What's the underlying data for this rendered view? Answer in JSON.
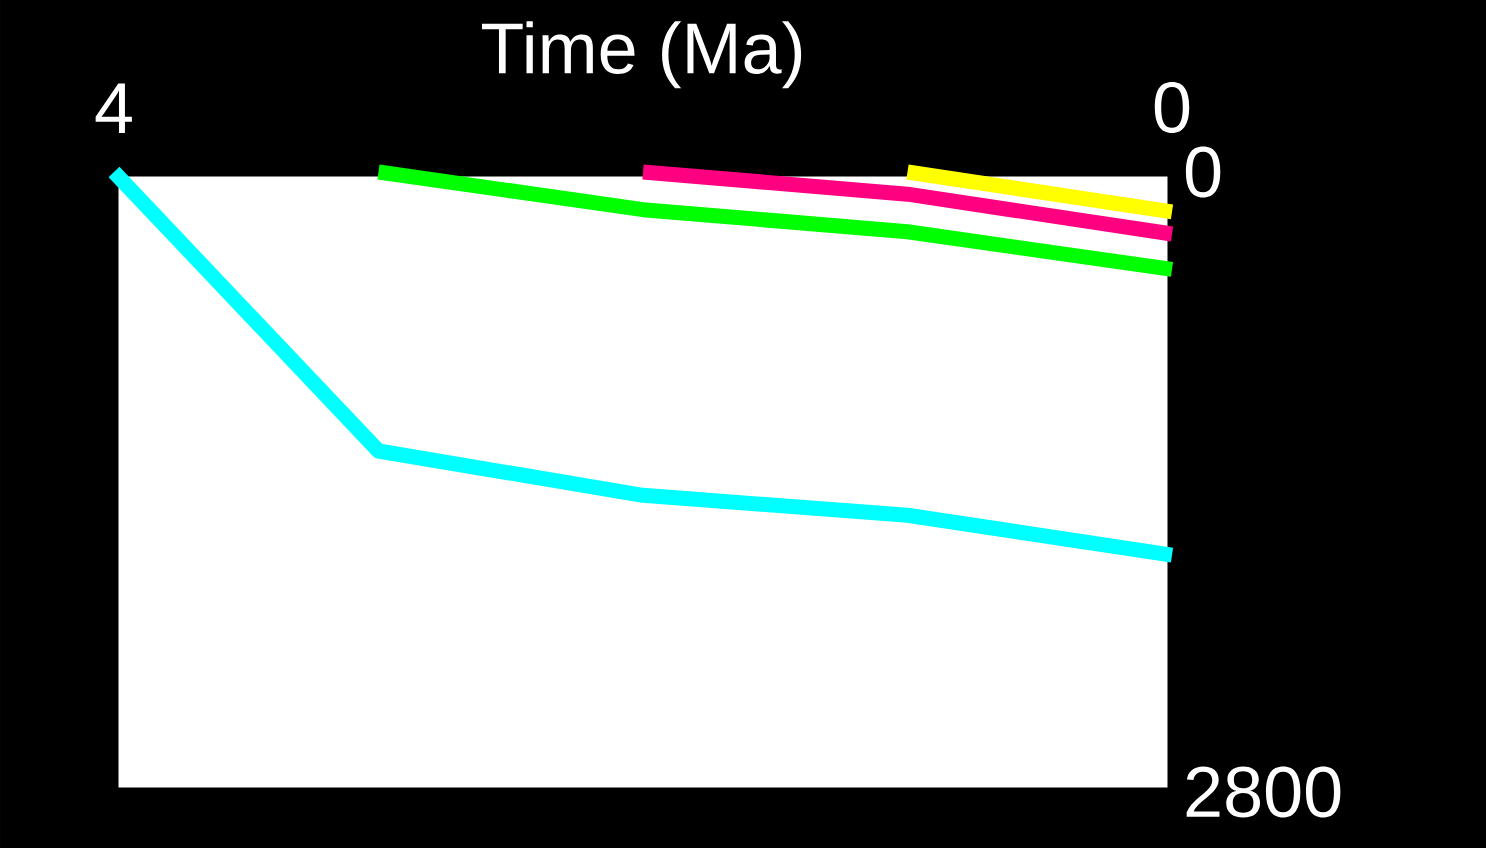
{
  "chart_data": {
    "type": "line",
    "xlabel": "Time (Ma)",
    "xlim": [
      4,
      0
    ],
    "xticks": [
      4,
      0
    ],
    "ylim": [
      2800,
      0
    ],
    "yticks": [
      0,
      2800
    ],
    "marker": "none",
    "line_style": "solid",
    "series": [
      {
        "color": "#00ffff",
        "x": [
          4,
          3,
          2,
          1,
          0
        ],
        "values": [
          0,
          1260,
          1460,
          1550,
          1730
        ]
      },
      {
        "color": "#00ff00",
        "x": [
          3,
          2,
          1,
          0
        ],
        "values": [
          0,
          170,
          270,
          440
        ]
      },
      {
        "color": "#ff0080",
        "x": [
          2,
          1,
          0
        ],
        "values": [
          0,
          100,
          280
        ]
      },
      {
        "color": "#ffff00",
        "x": [
          1,
          0
        ],
        "values": [
          0,
          180
        ]
      }
    ]
  }
}
